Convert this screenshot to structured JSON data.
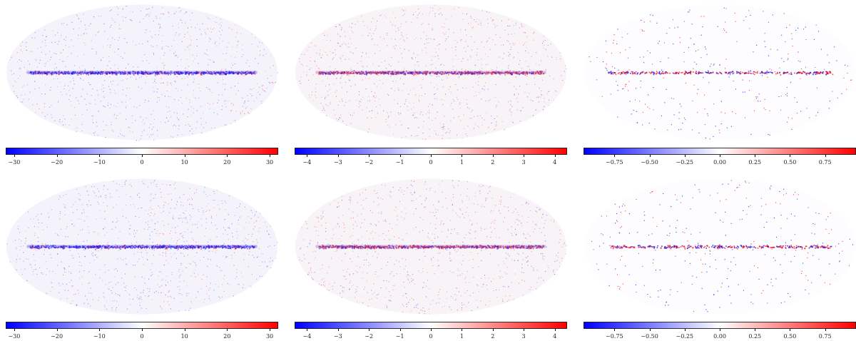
{
  "panels": [
    {
      "row": 1,
      "col": 1,
      "colorbar": {
        "min": -32,
        "max": 32,
        "ticks": [
          "−30",
          "−20",
          "−10",
          "0",
          "10",
          "20",
          "30"
        ],
        "tick_values": [
          -30,
          -20,
          -10,
          0,
          10,
          20,
          30
        ]
      },
      "style": "strong",
      "seed": 11
    },
    {
      "row": 1,
      "col": 2,
      "colorbar": {
        "min": -4.4,
        "max": 4.4,
        "ticks": [
          "−4",
          "−3",
          "−2",
          "−1",
          "0",
          "1",
          "2",
          "3",
          "4"
        ],
        "tick_values": [
          -4,
          -3,
          -2,
          -1,
          0,
          1,
          2,
          3,
          4
        ]
      },
      "style": "noisy",
      "seed": 23
    },
    {
      "row": 1,
      "col": 3,
      "colorbar": {
        "min": -0.97,
        "max": 0.97,
        "ticks": [
          "−0.75",
          "−0.50",
          "−0.25",
          "0.00",
          "0.25",
          "0.50",
          "0.75"
        ],
        "tick_values": [
          -0.75,
          -0.5,
          -0.25,
          0,
          0.25,
          0.5,
          0.75
        ]
      },
      "style": "sparse",
      "seed": 37
    },
    {
      "row": 2,
      "col": 1,
      "colorbar": {
        "min": -32,
        "max": 32,
        "ticks": [
          "−30",
          "−20",
          "−10",
          "0",
          "10",
          "20",
          "30"
        ],
        "tick_values": [
          -30,
          -20,
          -10,
          0,
          10,
          20,
          30
        ]
      },
      "style": "strong",
      "seed": 41
    },
    {
      "row": 2,
      "col": 2,
      "colorbar": {
        "min": -4.4,
        "max": 4.4,
        "ticks": [
          "−4",
          "−3",
          "−2",
          "−1",
          "0",
          "1",
          "2",
          "3",
          "4"
        ],
        "tick_values": [
          -4,
          -3,
          -2,
          -1,
          0,
          1,
          2,
          3,
          4
        ]
      },
      "style": "noisy",
      "seed": 53
    },
    {
      "row": 2,
      "col": 3,
      "colorbar": {
        "min": -0.97,
        "max": 0.97,
        "ticks": [
          "−0.75",
          "−0.50",
          "−0.25",
          "0.00",
          "0.25",
          "0.50",
          "0.75"
        ],
        "tick_values": [
          -0.75,
          -0.5,
          -0.25,
          0,
          0.25,
          0.5,
          0.75
        ]
      },
      "style": "sparse",
      "seed": 67
    }
  ],
  "colors": {
    "negative": "#0000ff",
    "zero": "#ffffff",
    "positive": "#ff0000"
  }
}
